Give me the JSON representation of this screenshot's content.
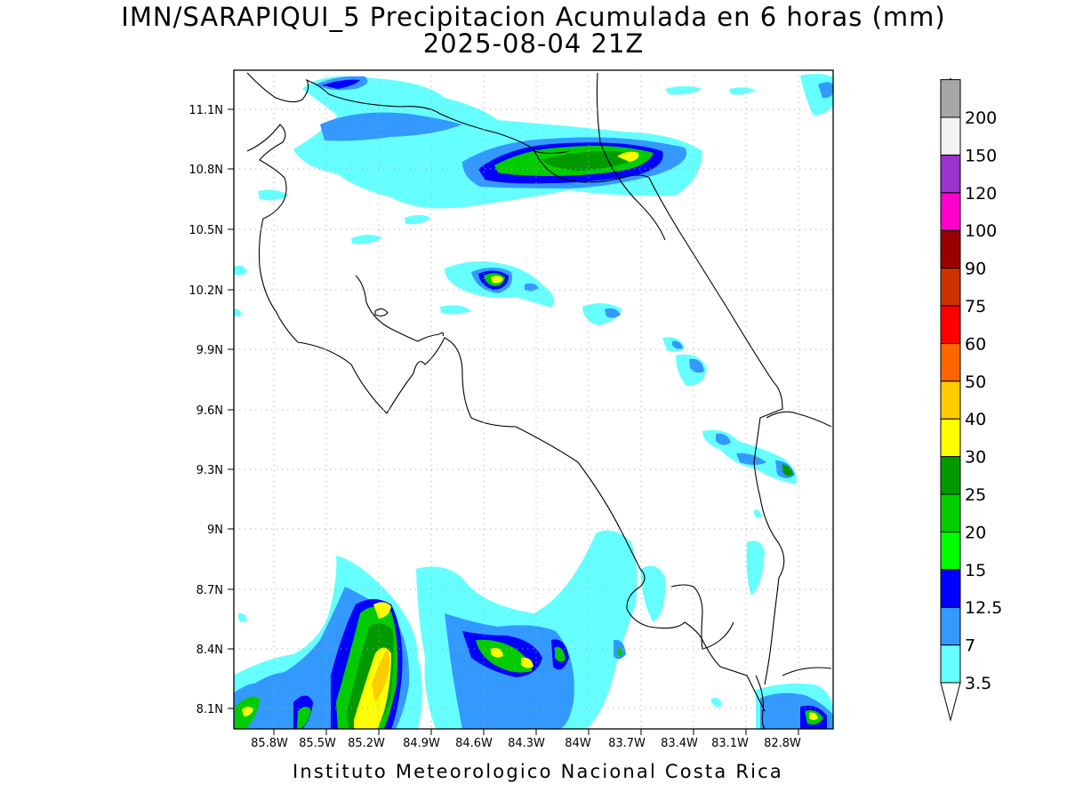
{
  "title": {
    "line1": "IMN/SARAPIQUI_5 Precipitacion Acumulada en 6 horas (mm)",
    "line2": "2025-08-04 21Z"
  },
  "footer": "Instituto Meteorologico Nacional Costa Rica",
  "map": {
    "lon_range": [
      -86.05,
      -82.62
    ],
    "lat_range": [
      8.01,
      11.3
    ],
    "lat_ticks": [
      "11.1N",
      "10.8N",
      "10.5N",
      "10.2N",
      "9.9N",
      "9.6N",
      "9.3N",
      "9N",
      "8.7N",
      "8.4N",
      "8.1N"
    ],
    "lon_ticks": [
      "85.8W",
      "85.5W",
      "85.2W",
      "84.9W",
      "84.6W",
      "84.3W",
      "84W",
      "83.7W",
      "83.4W",
      "83.1W",
      "82.8W"
    ],
    "gridlines": "dotted"
  },
  "colorbar": {
    "levels": [
      "3.5",
      "7",
      "12.5",
      "15",
      "20",
      "25",
      "30",
      "40",
      "50",
      "60",
      "75",
      "90",
      "100",
      "120",
      "150",
      "200"
    ],
    "colors": [
      "#66ffff",
      "#3399ff",
      "#0000ff",
      "#00ff00",
      "#00cc00",
      "#009900",
      "#ffff00",
      "#ffcc00",
      "#ff6600",
      "#ff0000",
      "#cc3300",
      "#990000",
      "#ff00cc",
      "#9933cc",
      "#f2f2f2",
      "#a6a6a6"
    ]
  },
  "colors": {
    "c1": "#66ffff",
    "c2": "#3399ff",
    "c3": "#0000ff",
    "c4": "#00ff00",
    "c5": "#00cc00",
    "c6": "#009900",
    "c7": "#ffff00",
    "c8": "#ffcc00",
    "coast": "#000000"
  }
}
